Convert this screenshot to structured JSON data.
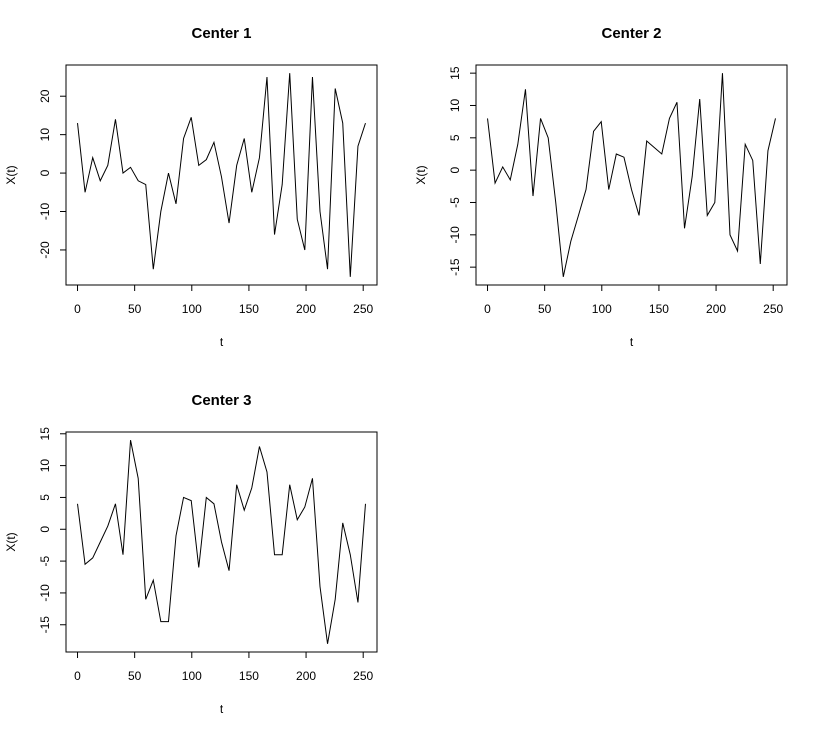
{
  "chart_data": [
    {
      "type": "line",
      "title": "Center 1",
      "xlabel": "t",
      "ylabel": "X(t)",
      "color": "#000000",
      "x": [
        0,
        6.6,
        13.3,
        19.9,
        26.5,
        33.2,
        39.8,
        46.4,
        53.1,
        59.7,
        66.3,
        72.9,
        79.6,
        86.2,
        92.8,
        99.5,
        106.1,
        112.7,
        119.4,
        126,
        132.6,
        139.3,
        145.9,
        152.5,
        159.2,
        165.8,
        172.4,
        179.1,
        185.7,
        192.3,
        198.9,
        205.6,
        212.2,
        218.8,
        225.5,
        232.1,
        238.7,
        245.4,
        252
      ],
      "values": [
        13,
        -5,
        4,
        -2,
        2,
        14,
        0,
        1.5,
        -2,
        -3,
        -25,
        -10,
        0,
        -8,
        9,
        14.5,
        2,
        3.5,
        8,
        -1,
        -13,
        2,
        9,
        -5,
        4,
        25,
        -16,
        -3,
        26,
        -12,
        -20,
        25,
        -10,
        -25,
        22,
        13,
        -27,
        7,
        13
      ],
      "xlim": [
        -10.08,
        262.08
      ],
      "xticks": [
        0,
        50,
        100,
        150,
        200,
        250
      ],
      "ylim": [
        -29.12,
        28.12
      ],
      "yticks": [
        -20,
        -10,
        0,
        10,
        20
      ]
    },
    {
      "type": "line",
      "title": "Center 2",
      "xlabel": "t",
      "ylabel": "X(t)",
      "color": "#000000",
      "x": [
        0,
        6.6,
        13.3,
        19.9,
        26.5,
        33.2,
        39.8,
        46.4,
        53.1,
        59.7,
        66.3,
        72.9,
        79.6,
        86.2,
        92.8,
        99.5,
        106.1,
        112.7,
        119.4,
        126,
        132.6,
        139.3,
        145.9,
        152.5,
        159.2,
        165.8,
        172.4,
        179.1,
        185.7,
        192.3,
        198.9,
        205.6,
        212.2,
        218.8,
        225.5,
        232.1,
        238.7,
        245.4,
        252
      ],
      "values": [
        8,
        -2,
        0.5,
        -1.5,
        4,
        12.5,
        -4,
        8,
        5,
        -5,
        -16.5,
        -11,
        -7,
        -3,
        6,
        7.5,
        -3,
        2.5,
        2,
        -3,
        -7,
        4.5,
        3.5,
        2.5,
        8,
        10.5,
        -9,
        -1,
        11,
        -7,
        -5,
        15,
        -10,
        -12.5,
        4,
        1.5,
        -14.5,
        3,
        8
      ],
      "xlim": [
        -10.08,
        262.08
      ],
      "xticks": [
        0,
        50,
        100,
        150,
        200,
        250
      ],
      "ylim": [
        -17.76,
        16.26
      ],
      "yticks": [
        -15,
        -10,
        -5,
        0,
        5,
        10,
        15
      ]
    },
    {
      "type": "line",
      "title": "Center 3",
      "xlabel": "t",
      "ylabel": "X(t)",
      "color": "#000000",
      "x": [
        0,
        6.6,
        13.3,
        19.9,
        26.5,
        33.2,
        39.8,
        46.4,
        53.1,
        59.7,
        66.3,
        72.9,
        79.6,
        86.2,
        92.8,
        99.5,
        106.1,
        112.7,
        119.4,
        126,
        132.6,
        139.3,
        145.9,
        152.5,
        159.2,
        165.8,
        172.4,
        179.1,
        185.7,
        192.3,
        198.9,
        205.6,
        212.2,
        218.8,
        225.5,
        232.1,
        238.7,
        245.4,
        252
      ],
      "values": [
        4,
        -5.5,
        -4.5,
        -2,
        0.5,
        4,
        -4,
        14,
        8,
        -11,
        -8,
        -14.5,
        -14.5,
        -1,
        5,
        4.5,
        -6,
        5,
        4,
        -2,
        -6.5,
        7,
        3,
        6.5,
        13,
        9,
        -4,
        -4,
        7,
        1.5,
        3.5,
        8,
        -9,
        -18,
        -11,
        1,
        -4,
        -11.5,
        4
      ],
      "xlim": [
        -10.08,
        262.08
      ],
      "xticks": [
        0,
        50,
        100,
        150,
        200,
        250
      ],
      "ylim": [
        -19.28,
        15.28
      ],
      "yticks": [
        -15,
        -10,
        -5,
        0,
        5,
        10,
        15
      ]
    }
  ]
}
